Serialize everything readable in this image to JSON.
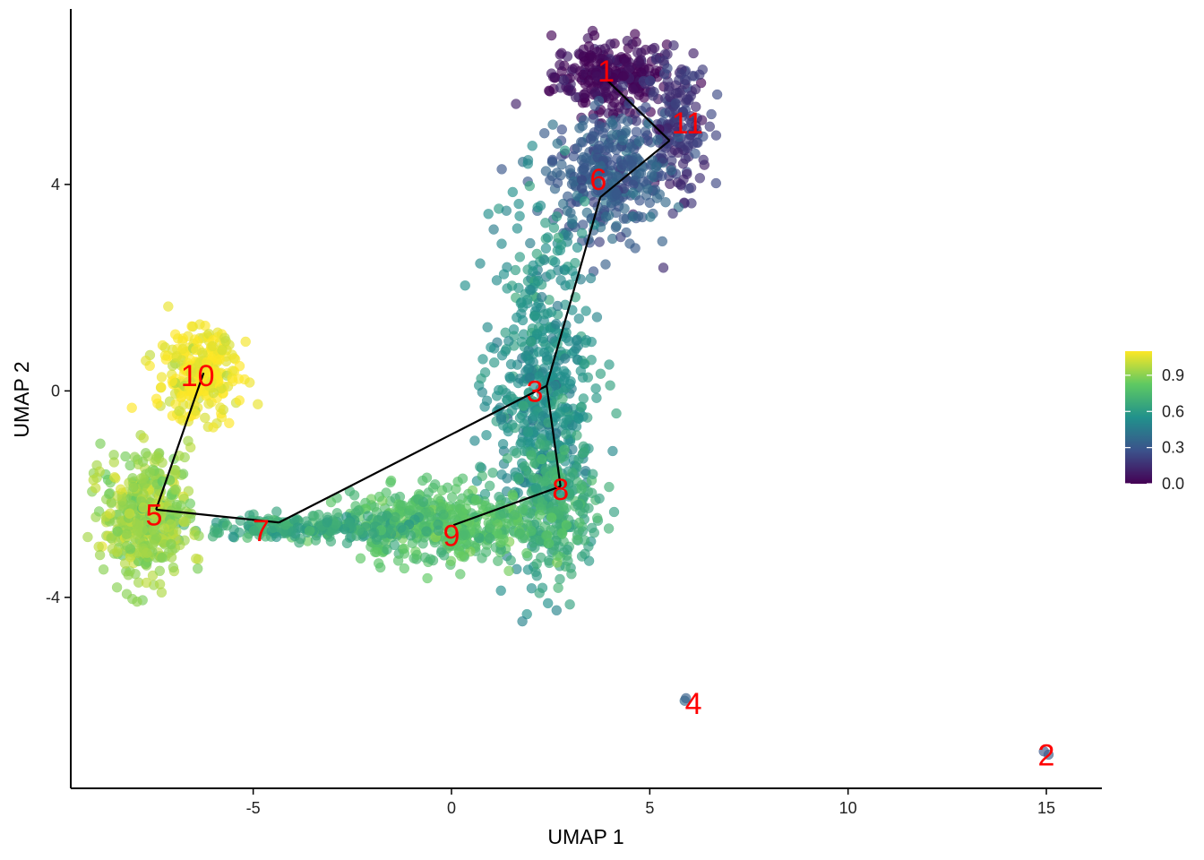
{
  "chart_data": {
    "type": "scatter",
    "title": "",
    "xlabel": "UMAP 1",
    "ylabel": "UMAP 2",
    "xlim": [
      -9.6,
      16.4
    ],
    "ylim": [
      -7.7,
      7.4
    ],
    "x_ticks": [
      -5,
      0,
      5,
      10,
      15
    ],
    "x_tick_labels": [
      "-5",
      "0",
      "5",
      "10",
      "15"
    ],
    "y_ticks": [
      -4,
      0,
      4
    ],
    "y_tick_labels": [
      "-4",
      "0",
      "4"
    ],
    "grid": false,
    "colormap": "viridis",
    "colorbar": {
      "range": [
        0.0,
        1.1
      ],
      "ticks": [
        0.0,
        0.3,
        0.6,
        0.9
      ],
      "tick_labels": [
        "0.0",
        "0.3",
        "0.6",
        "0.9"
      ],
      "colors": [
        "#440154",
        "#3b528b",
        "#21918c",
        "#5ec962",
        "#fde725"
      ],
      "placement": "right"
    },
    "clusters": [
      {
        "label": "1",
        "x": 4.0,
        "y": 6.1,
        "sx": 0.7,
        "sy": 0.35,
        "n": 260,
        "value": 0.03
      },
      {
        "label": "11",
        "x": 5.6,
        "y": 5.2,
        "sx": 0.45,
        "sy": 0.7,
        "n": 180,
        "value": 0.18
      },
      {
        "label": "6",
        "x": 3.9,
        "y": 4.2,
        "sx": 0.7,
        "sy": 0.6,
        "n": 330,
        "value": 0.32
      },
      {
        "label": "3",
        "x": 2.3,
        "y": 0.0,
        "sx": 0.65,
        "sy": 1.6,
        "n": 560,
        "value": 0.55
      },
      {
        "label": "8",
        "x": 2.6,
        "y": -2.3,
        "sx": 0.55,
        "sy": 0.6,
        "n": 220,
        "value": 0.68
      },
      {
        "label": "9",
        "x": -0.2,
        "y": -2.6,
        "sx": 1.2,
        "sy": 0.35,
        "n": 420,
        "value": 0.78
      },
      {
        "label": "7",
        "x": -3.5,
        "y": -2.65,
        "sx": 1.4,
        "sy": 0.12,
        "n": 220,
        "value": 0.66
      },
      {
        "label": "5",
        "x": -7.7,
        "y": -2.4,
        "sx": 0.55,
        "sy": 0.6,
        "n": 420,
        "value": 0.93
      },
      {
        "label": "10",
        "x": -6.4,
        "y": 0.35,
        "sx": 0.5,
        "sy": 0.45,
        "n": 260,
        "value": 1.08
      },
      {
        "label": "4",
        "x": 6.0,
        "y": -5.95,
        "sx": 0.05,
        "sy": 0.03,
        "n": 2,
        "value": 0.35
      },
      {
        "label": "2",
        "x": 15.0,
        "y": -7.0,
        "sx": 0.05,
        "sy": 0.03,
        "n": 2,
        "value": 0.35
      }
    ],
    "trajectory": [
      {
        "from": "1",
        "to": "11"
      },
      {
        "from": "11",
        "to": "6"
      },
      {
        "from": "6",
        "to": "3"
      },
      {
        "from": "3",
        "to": "8"
      },
      {
        "from": "8",
        "to": "9"
      },
      {
        "from": "3",
        "to": "7"
      },
      {
        "from": "7",
        "to": "5"
      },
      {
        "from": "5",
        "to": "10"
      }
    ],
    "trajectory_nodes": {
      "1": [
        3.95,
        6.0
      ],
      "11": [
        5.5,
        4.85
      ],
      "6": [
        3.75,
        3.75
      ],
      "3": [
        2.4,
        0.1
      ],
      "8": [
        2.75,
        -1.85
      ],
      "9": [
        0.05,
        -2.6
      ],
      "7": [
        -4.35,
        -2.55
      ],
      "5": [
        -7.45,
        -2.3
      ],
      "10": [
        -6.25,
        0.35
      ]
    },
    "cluster_label_positions": {
      "1": [
        3.9,
        6.2
      ],
      "11": [
        5.95,
        5.2
      ],
      "6": [
        3.7,
        4.1
      ],
      "3": [
        2.1,
        0.0
      ],
      "8": [
        2.75,
        -1.9
      ],
      "9": [
        0.0,
        -2.8
      ],
      "7": [
        -4.8,
        -2.7
      ],
      "5": [
        -7.5,
        -2.4
      ],
      "10": [
        -6.4,
        0.3
      ],
      "4": [
        6.1,
        -6.05
      ],
      "2": [
        15.0,
        -7.05
      ]
    }
  }
}
